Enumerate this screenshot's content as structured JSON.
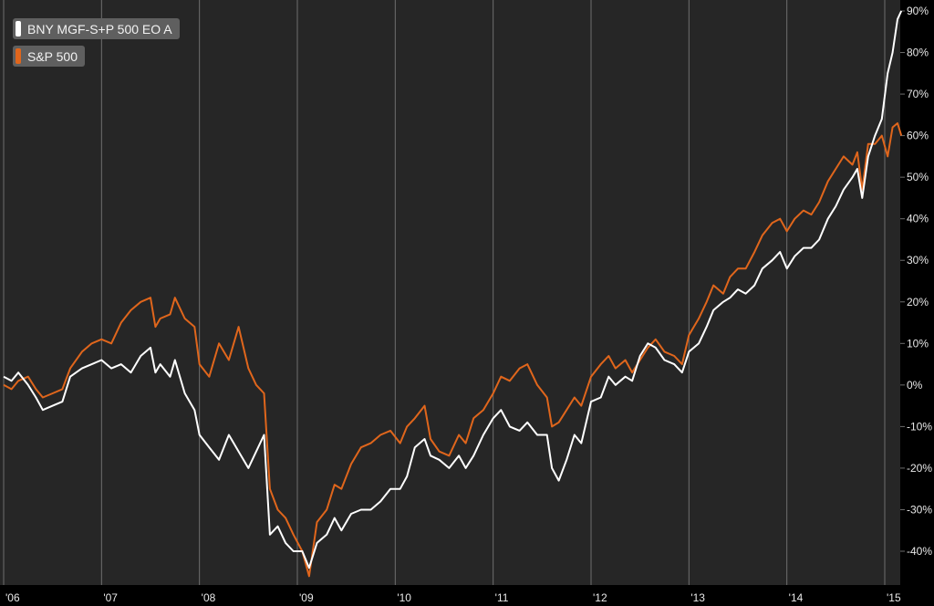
{
  "colors": {
    "background": "#262626",
    "grid": "#6e6e6e",
    "fund": "#ffffff",
    "index": "#e0661c"
  },
  "chart_data": {
    "type": "line",
    "title": "",
    "xlabel": "",
    "ylabel": "",
    "x_ticks": [
      "'06",
      "'07",
      "'08",
      "'09",
      "'10",
      "'11",
      "'12",
      "'13",
      "'14",
      "'15"
    ],
    "y_ticks": [
      "90%",
      "80%",
      "70%",
      "60%",
      "50%",
      "40%",
      "30%",
      "20%",
      "10%",
      "0%",
      "-10%",
      "-20%",
      "-30%",
      "-40%"
    ],
    "ylim": [
      -47,
      92
    ],
    "xlim": [
      2006.0,
      2015.17
    ],
    "grid": true,
    "legend_position": "top-left",
    "series": [
      {
        "name": "BNY MGF-S+P 500 EO A",
        "color": "#ffffff",
        "points": [
          [
            2006.0,
            2
          ],
          [
            2006.08,
            1
          ],
          [
            2006.15,
            3
          ],
          [
            2006.25,
            0
          ],
          [
            2006.33,
            -3
          ],
          [
            2006.4,
            -6
          ],
          [
            2006.5,
            -5
          ],
          [
            2006.6,
            -4
          ],
          [
            2006.68,
            2
          ],
          [
            2006.8,
            4
          ],
          [
            2006.9,
            5
          ],
          [
            2007.0,
            6
          ],
          [
            2007.1,
            4
          ],
          [
            2007.2,
            5
          ],
          [
            2007.3,
            3
          ],
          [
            2007.4,
            7
          ],
          [
            2007.5,
            9
          ],
          [
            2007.55,
            3
          ],
          [
            2007.6,
            5
          ],
          [
            2007.7,
            2
          ],
          [
            2007.75,
            6
          ],
          [
            2007.85,
            -2
          ],
          [
            2007.95,
            -6
          ],
          [
            2008.0,
            -12
          ],
          [
            2008.1,
            -15
          ],
          [
            2008.2,
            -18
          ],
          [
            2008.3,
            -12
          ],
          [
            2008.4,
            -16
          ],
          [
            2008.5,
            -20
          ],
          [
            2008.58,
            -16
          ],
          [
            2008.66,
            -12
          ],
          [
            2008.72,
            -36
          ],
          [
            2008.8,
            -34
          ],
          [
            2008.88,
            -38
          ],
          [
            2008.96,
            -40
          ],
          [
            2009.05,
            -40
          ],
          [
            2009.12,
            -44
          ],
          [
            2009.2,
            -38
          ],
          [
            2009.3,
            -36
          ],
          [
            2009.38,
            -32
          ],
          [
            2009.45,
            -35
          ],
          [
            2009.55,
            -31
          ],
          [
            2009.65,
            -30
          ],
          [
            2009.75,
            -30
          ],
          [
            2009.85,
            -28
          ],
          [
            2009.95,
            -25
          ],
          [
            2010.05,
            -25
          ],
          [
            2010.12,
            -22
          ],
          [
            2010.2,
            -15
          ],
          [
            2010.3,
            -13
          ],
          [
            2010.36,
            -17
          ],
          [
            2010.45,
            -18
          ],
          [
            2010.55,
            -20
          ],
          [
            2010.65,
            -17
          ],
          [
            2010.72,
            -20
          ],
          [
            2010.8,
            -17
          ],
          [
            2010.9,
            -12
          ],
          [
            2011.0,
            -8
          ],
          [
            2011.08,
            -6
          ],
          [
            2011.17,
            -10
          ],
          [
            2011.27,
            -11
          ],
          [
            2011.35,
            -9
          ],
          [
            2011.45,
            -12
          ],
          [
            2011.55,
            -12
          ],
          [
            2011.6,
            -20
          ],
          [
            2011.67,
            -23
          ],
          [
            2011.75,
            -18
          ],
          [
            2011.83,
            -12
          ],
          [
            2011.9,
            -14
          ],
          [
            2012.0,
            -4
          ],
          [
            2012.1,
            -3
          ],
          [
            2012.18,
            2
          ],
          [
            2012.25,
            0
          ],
          [
            2012.35,
            2
          ],
          [
            2012.42,
            1
          ],
          [
            2012.5,
            7
          ],
          [
            2012.58,
            10
          ],
          [
            2012.66,
            9
          ],
          [
            2012.75,
            6
          ],
          [
            2012.85,
            5
          ],
          [
            2012.93,
            3
          ],
          [
            2013.0,
            8
          ],
          [
            2013.1,
            10
          ],
          [
            2013.18,
            14
          ],
          [
            2013.25,
            18
          ],
          [
            2013.35,
            20
          ],
          [
            2013.42,
            21
          ],
          [
            2013.5,
            23
          ],
          [
            2013.58,
            22
          ],
          [
            2013.67,
            24
          ],
          [
            2013.75,
            28
          ],
          [
            2013.85,
            30
          ],
          [
            2013.93,
            32
          ],
          [
            2014.0,
            28
          ],
          [
            2014.08,
            31
          ],
          [
            2014.17,
            33
          ],
          [
            2014.25,
            33
          ],
          [
            2014.33,
            35
          ],
          [
            2014.42,
            40
          ],
          [
            2014.5,
            43
          ],
          [
            2014.58,
            47
          ],
          [
            2014.67,
            50
          ],
          [
            2014.72,
            52
          ],
          [
            2014.77,
            45
          ],
          [
            2014.83,
            55
          ],
          [
            2014.9,
            60
          ],
          [
            2014.97,
            64
          ],
          [
            2015.03,
            75
          ],
          [
            2015.08,
            80
          ],
          [
            2015.13,
            88
          ],
          [
            2015.17,
            90
          ]
        ]
      },
      {
        "name": "S&P 500",
        "color": "#e0661c",
        "points": [
          [
            2006.0,
            0
          ],
          [
            2006.08,
            -1
          ],
          [
            2006.15,
            1
          ],
          [
            2006.25,
            2
          ],
          [
            2006.33,
            -1
          ],
          [
            2006.4,
            -3
          ],
          [
            2006.5,
            -2
          ],
          [
            2006.6,
            -1
          ],
          [
            2006.68,
            4
          ],
          [
            2006.8,
            8
          ],
          [
            2006.9,
            10
          ],
          [
            2007.0,
            11
          ],
          [
            2007.1,
            10
          ],
          [
            2007.2,
            15
          ],
          [
            2007.3,
            18
          ],
          [
            2007.4,
            20
          ],
          [
            2007.5,
            21
          ],
          [
            2007.55,
            14
          ],
          [
            2007.6,
            16
          ],
          [
            2007.7,
            17
          ],
          [
            2007.75,
            21
          ],
          [
            2007.85,
            16
          ],
          [
            2007.95,
            14
          ],
          [
            2008.0,
            5
          ],
          [
            2008.1,
            2
          ],
          [
            2008.2,
            10
          ],
          [
            2008.3,
            6
          ],
          [
            2008.4,
            14
          ],
          [
            2008.5,
            4
          ],
          [
            2008.58,
            0
          ],
          [
            2008.66,
            -2
          ],
          [
            2008.72,
            -25
          ],
          [
            2008.8,
            -30
          ],
          [
            2008.88,
            -32
          ],
          [
            2008.96,
            -36
          ],
          [
            2009.05,
            -40
          ],
          [
            2009.12,
            -46
          ],
          [
            2009.2,
            -33
          ],
          [
            2009.3,
            -30
          ],
          [
            2009.38,
            -24
          ],
          [
            2009.45,
            -25
          ],
          [
            2009.55,
            -19
          ],
          [
            2009.65,
            -15
          ],
          [
            2009.75,
            -14
          ],
          [
            2009.85,
            -12
          ],
          [
            2009.95,
            -11
          ],
          [
            2010.05,
            -14
          ],
          [
            2010.12,
            -10
          ],
          [
            2010.2,
            -8
          ],
          [
            2010.3,
            -5
          ],
          [
            2010.36,
            -13
          ],
          [
            2010.45,
            -16
          ],
          [
            2010.55,
            -17
          ],
          [
            2010.65,
            -12
          ],
          [
            2010.72,
            -14
          ],
          [
            2010.8,
            -8
          ],
          [
            2010.9,
            -6
          ],
          [
            2011.0,
            -2
          ],
          [
            2011.08,
            2
          ],
          [
            2011.17,
            1
          ],
          [
            2011.27,
            4
          ],
          [
            2011.35,
            5
          ],
          [
            2011.45,
            0
          ],
          [
            2011.55,
            -3
          ],
          [
            2011.6,
            -10
          ],
          [
            2011.67,
            -9
          ],
          [
            2011.75,
            -6
          ],
          [
            2011.83,
            -3
          ],
          [
            2011.9,
            -5
          ],
          [
            2012.0,
            2
          ],
          [
            2012.1,
            5
          ],
          [
            2012.18,
            7
          ],
          [
            2012.25,
            4
          ],
          [
            2012.35,
            6
          ],
          [
            2012.42,
            3
          ],
          [
            2012.5,
            6
          ],
          [
            2012.58,
            9
          ],
          [
            2012.66,
            11
          ],
          [
            2012.75,
            8
          ],
          [
            2012.85,
            7
          ],
          [
            2012.93,
            5
          ],
          [
            2013.0,
            12
          ],
          [
            2013.1,
            16
          ],
          [
            2013.18,
            20
          ],
          [
            2013.25,
            24
          ],
          [
            2013.35,
            22
          ],
          [
            2013.42,
            26
          ],
          [
            2013.5,
            28
          ],
          [
            2013.58,
            28
          ],
          [
            2013.67,
            32
          ],
          [
            2013.75,
            36
          ],
          [
            2013.85,
            39
          ],
          [
            2013.93,
            40
          ],
          [
            2014.0,
            37
          ],
          [
            2014.08,
            40
          ],
          [
            2014.17,
            42
          ],
          [
            2014.25,
            41
          ],
          [
            2014.33,
            44
          ],
          [
            2014.42,
            49
          ],
          [
            2014.5,
            52
          ],
          [
            2014.58,
            55
          ],
          [
            2014.67,
            53
          ],
          [
            2014.72,
            56
          ],
          [
            2014.77,
            47
          ],
          [
            2014.83,
            58
          ],
          [
            2014.9,
            58
          ],
          [
            2014.97,
            60
          ],
          [
            2015.03,
            55
          ],
          [
            2015.08,
            62
          ],
          [
            2015.13,
            63
          ],
          [
            2015.17,
            60
          ]
        ]
      }
    ]
  }
}
